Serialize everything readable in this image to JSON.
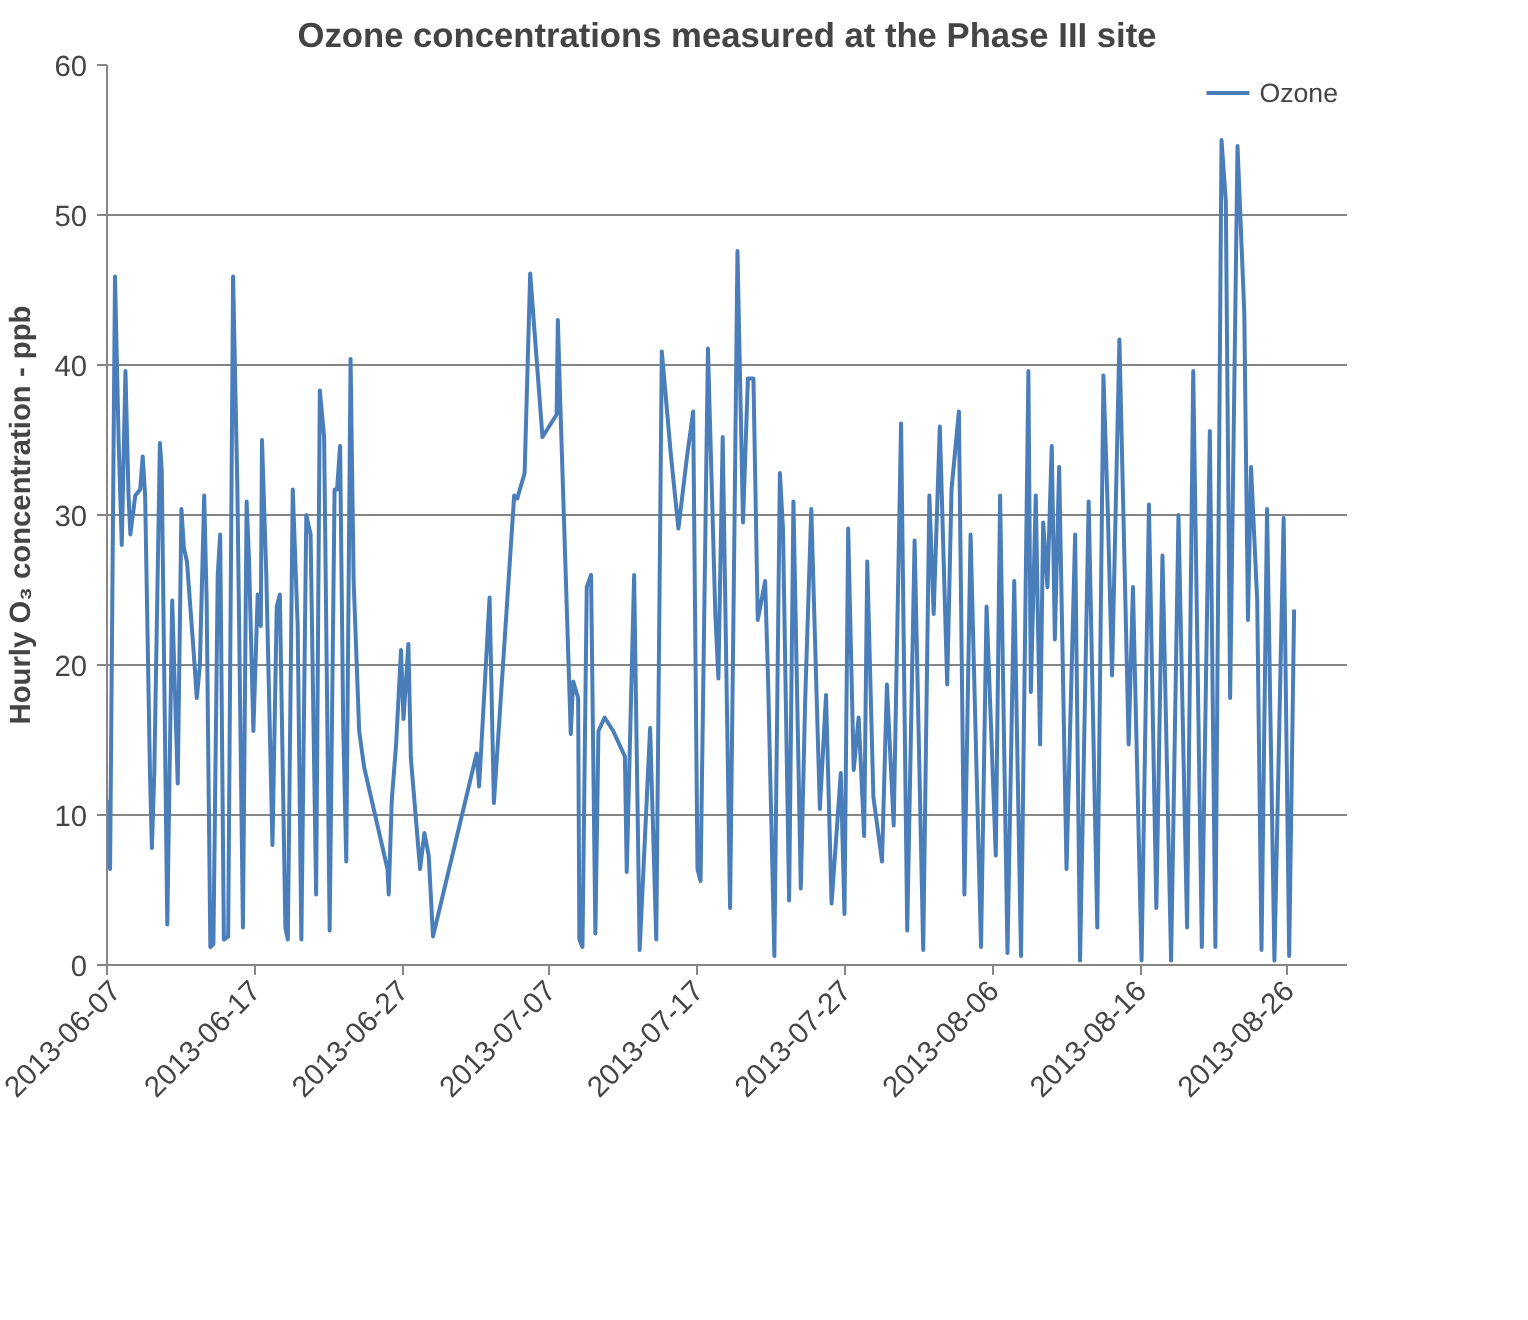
{
  "chart_data": {
    "type": "line",
    "title": "Ozone concentrations measured at the Phase III site",
    "ylabel": "Hourly O₃ concentration - ppb",
    "x": [
      "2013-06-07T00:00",
      "2013-06-07T05:00",
      "2013-06-07T13:00",
      "2013-06-07T19:00",
      "2013-06-08T00:00",
      "2013-06-08T06:00",
      "2013-06-08T11:00",
      "2013-06-08T14:00",
      "2013-06-08T22:00",
      "2013-06-09T06:00",
      "2013-06-09T10:00",
      "2013-06-09T14:00",
      "2013-06-09T22:00",
      "2013-06-10T01:00",
      "2013-06-10T05:00",
      "2013-06-10T14:00",
      "2013-06-10T17:00",
      "2013-06-11T02:00",
      "2013-06-11T10:00",
      "2013-06-11T19:00",
      "2013-06-12T01:00",
      "2013-06-12T05:00",
      "2013-06-12T10:00",
      "2013-06-12T21:00",
      "2013-06-13T02:00",
      "2013-06-13T07:00",
      "2013-06-13T14:00",
      "2013-06-13T18:00",
      "2013-06-14T00:00",
      "2013-06-14T05:00",
      "2013-06-14T12:00",
      "2013-06-14T16:00",
      "2013-06-14T22:00",
      "2013-06-15T05:00",
      "2013-06-15T13:00",
      "2013-06-15T20:00",
      "2013-06-16T05:00",
      "2013-06-16T11:00",
      "2013-06-16T15:00",
      "2013-06-16T22:00",
      "2013-06-17T05:00",
      "2013-06-17T10:00",
      "2013-06-17T12:00",
      "2013-06-17T19:00",
      "2013-06-18T05:00",
      "2013-06-18T12:00",
      "2013-06-18T17:00",
      "2013-06-19T02:00",
      "2013-06-19T06:00",
      "2013-06-19T14:00",
      "2013-06-19T22:00",
      "2013-06-20T04:00",
      "2013-06-20T12:00",
      "2013-06-20T19:00",
      "2013-06-21T04:00",
      "2013-06-21T10:00",
      "2013-06-21T17:00",
      "2013-06-22T02:00",
      "2013-06-22T10:00",
      "2013-06-22T14:00",
      "2013-06-22T19:00",
      "2013-06-23T00:00",
      "2013-06-23T05:00",
      "2013-06-23T12:00",
      "2013-06-23T17:00",
      "2013-06-24T02:00",
      "2013-06-24T10:00",
      "2013-06-26T00:00",
      "2013-06-26T02:00",
      "2013-06-26T07:00",
      "2013-06-26T14:00",
      "2013-06-26T22:00",
      "2013-06-27T02:00",
      "2013-06-27T10:00",
      "2013-06-27T14:00",
      "2013-06-28T05:00",
      "2013-06-28T12:00",
      "2013-06-28T19:00",
      "2013-06-29T02:00",
      "2013-07-02T01:00",
      "2013-07-02T05:00",
      "2013-07-02T22:00",
      "2013-07-03T05:00",
      "2013-07-04T14:00",
      "2013-07-04T19:00",
      "2013-07-05T07:00",
      "2013-07-05T16:00",
      "2013-07-06T12:00",
      "2013-07-07T11:00",
      "2013-07-07T13:00",
      "2013-07-07T17:00",
      "2013-07-08T10:00",
      "2013-07-08T14:00",
      "2013-07-08T22:00",
      "2013-07-09T00:00",
      "2013-07-09T05:00",
      "2013-07-09T12:00",
      "2013-07-09T19:00",
      "2013-07-10T02:00",
      "2013-07-10T07:00",
      "2013-07-10T17:00",
      "2013-07-11T07:00",
      "2013-07-12T02:00",
      "2013-07-12T05:00",
      "2013-07-12T17:00",
      "2013-07-13T02:00",
      "2013-07-13T19:00",
      "2013-07-14T05:00",
      "2013-07-14T14:00",
      "2013-07-15T05:00",
      "2013-07-15T17:00",
      "2013-07-16T07:00",
      "2013-07-16T17:00",
      "2013-07-17T00:00",
      "2013-07-17T05:00",
      "2013-07-17T17:00",
      "2013-07-18T05:00",
      "2013-07-18T10:00",
      "2013-07-18T17:00",
      "2013-07-19T05:00",
      "2013-07-19T12:00",
      "2013-07-19T17:00",
      "2013-07-20T02:00",
      "2013-07-20T10:00",
      "2013-07-20T19:00",
      "2013-07-21T02:00",
      "2013-07-21T14:00",
      "2013-07-21T19:00",
      "2013-07-22T05:00",
      "2013-07-22T14:00",
      "2013-07-22T19:00",
      "2013-07-23T05:00",
      "2013-07-23T12:00",
      "2013-07-24T00:00",
      "2013-07-24T07:00",
      "2013-07-24T17:00",
      "2013-07-25T07:00",
      "2013-07-25T17:00",
      "2013-07-26T02:00",
      "2013-07-26T17:00",
      "2013-07-26T23:00",
      "2013-07-27T05:00",
      "2013-07-27T14:00",
      "2013-07-27T22:00",
      "2013-07-28T07:00",
      "2013-07-28T12:00",
      "2013-07-28T22:00",
      "2013-07-29T12:00",
      "2013-07-29T20:00",
      "2013-07-30T07:00",
      "2013-07-30T19:00",
      "2013-07-31T05:00",
      "2013-07-31T17:00",
      "2013-08-01T07:00",
      "2013-08-01T17:00",
      "2013-08-02T00:00",
      "2013-08-02T10:00",
      "2013-08-02T22:00",
      "2013-08-03T05:00",
      "2013-08-03T17:00",
      "2013-08-04T02:00",
      "2013-08-04T12:00",
      "2013-08-05T05:00",
      "2013-08-05T14:00",
      "2013-08-06T05:00",
      "2013-08-06T12:00",
      "2013-08-07T00:00",
      "2013-08-07T11:00",
      "2013-08-07T22:00",
      "2013-08-08T10:00",
      "2013-08-08T14:00",
      "2013-08-08T22:00",
      "2013-08-09T05:00",
      "2013-08-09T10:00",
      "2013-08-09T17:00",
      "2013-08-10T00:00",
      "2013-08-10T05:00",
      "2013-08-10T12:00",
      "2013-08-11T00:00",
      "2013-08-11T14:00",
      "2013-08-11T22:00",
      "2013-08-12T12:00",
      "2013-08-13T02:00",
      "2013-08-13T12:00",
      "2013-08-13T19:00",
      "2013-08-14T02:00",
      "2013-08-14T14:00",
      "2013-08-15T05:00",
      "2013-08-15T12:00",
      "2013-08-16T02:00",
      "2013-08-16T14:00",
      "2013-08-17T02:00",
      "2013-08-17T12:00",
      "2013-08-18T02:00",
      "2013-08-18T14:00",
      "2013-08-19T04:00",
      "2013-08-19T14:00",
      "2013-08-20T04:00",
      "2013-08-20T17:00",
      "2013-08-21T02:00",
      "2013-08-21T12:00",
      "2013-08-21T19:00",
      "2013-08-22T02:00",
      "2013-08-22T14:00",
      "2013-08-23T01:00",
      "2013-08-23T07:00",
      "2013-08-23T12:00",
      "2013-08-23T22:00",
      "2013-08-24T05:00",
      "2013-08-24T14:00",
      "2013-08-25T02:00",
      "2013-08-25T17:00",
      "2013-08-26T02:00",
      "2013-08-26T10:00"
    ],
    "series": [
      {
        "name": "Ozone",
        "color": "#4a7ebb",
        "values": [
          11.0,
          6.4,
          45.9,
          34.8,
          28,
          39.6,
          31.3,
          28.7,
          31.3,
          31.7,
          33.9,
          31.3,
          12.5,
          7.8,
          13,
          34.8,
          33,
          2.7,
          24.3,
          12.1,
          30.4,
          27.8,
          26.9,
          20.8,
          17.8,
          20,
          31.3,
          24.3,
          1.2,
          1.4,
          26,
          28.7,
          1.7,
          1.9,
          45.9,
          31.7,
          2.5,
          30.9,
          26.9,
          15.6,
          24.7,
          22.6,
          35,
          26,
          8,
          23.9,
          24.7,
          2.5,
          1.7,
          31.7,
          22.6,
          1.7,
          30,
          28.7,
          4.7,
          38.3,
          35.2,
          2.3,
          31.7,
          31.7,
          34.6,
          16,
          6.9,
          40.4,
          25.6,
          15.6,
          13.2,
          6.4,
          4.7,
          11,
          14.7,
          21,
          16.4,
          21.4,
          13.8,
          6.4,
          8.8,
          7.3,
          1.9,
          14.1,
          11.9,
          24.5,
          10.8,
          31.3,
          31.1,
          32.8,
          46.1,
          35.2,
          36.7,
          43,
          37.4,
          15.4,
          18.9,
          17.8,
          1.7,
          1.2,
          25.2,
          26,
          2.1,
          15.6,
          16.5,
          15.6,
          13.9,
          6.2,
          26,
          1.0,
          15.8,
          1.7,
          40.9,
          33.9,
          29.1,
          33.9,
          36.9,
          6.4,
          5.6,
          41.1,
          23.4,
          19.1,
          35.2,
          3.8,
          28.7,
          47.6,
          29.5,
          39.1,
          39.1,
          23,
          25.6,
          18.7,
          0.6,
          32.8,
          29.1,
          4.3,
          30.9,
          5.1,
          17.5,
          30.4,
          10.4,
          18,
          4.1,
          12.8,
          3.4,
          29.1,
          13,
          16.5,
          8.6,
          26.9,
          11.2,
          6.9,
          18.7,
          9.3,
          36.1,
          2.3,
          28.3,
          1.0,
          31.3,
          23.4,
          35.9,
          18.7,
          31.7,
          36.9,
          4.7,
          28.7,
          1.2,
          23.9,
          7.3,
          31.3,
          0.8,
          25.6,
          0.6,
          39.6,
          18.2,
          31.3,
          14.7,
          29.5,
          25.2,
          34.6,
          21.7,
          33.2,
          6.4,
          28.7,
          0.3,
          30.9,
          2.5,
          39.3,
          30.4,
          19.3,
          41.7,
          14.7,
          25.2,
          0.3,
          30.7,
          3.8,
          27.3,
          0.3,
          30,
          2.5,
          39.6,
          1.2,
          35.6,
          1.2,
          55,
          50.9,
          17.8,
          54.6,
          43.5,
          23,
          33.2,
          24.3,
          1.0,
          30.4,
          0.3,
          29.8,
          0.6,
          23.7
        ]
      }
    ],
    "xlim": [
      "2013-06-07",
      "2013-08-30"
    ],
    "xticks": [
      "2013-06-07",
      "2013-06-17",
      "2013-06-27",
      "2013-07-07",
      "2013-07-17",
      "2013-07-27",
      "2013-08-06",
      "2013-08-16",
      "2013-08-26"
    ],
    "ylim": [
      0,
      60
    ],
    "yticks": [
      0,
      10,
      20,
      30,
      40,
      50,
      60
    ],
    "grid": "y",
    "legend": "top right",
    "marker": "none",
    "line_style": "solid"
  }
}
